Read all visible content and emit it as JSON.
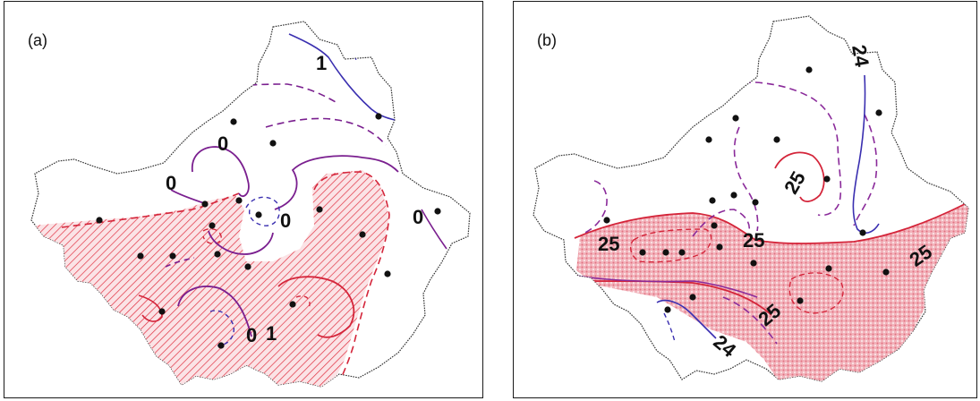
{
  "figure": {
    "panels": [
      {
        "id": "a",
        "label": "(a)",
        "contour_labels": [
          "0",
          "0",
          "0",
          "0",
          "0",
          "1",
          "1"
        ],
        "colors": {
          "positive_contour": "#d4253a",
          "zero_contour": "#7a1f8f",
          "negative_contour": "#3a2fb0",
          "hatch": "#e03040"
        },
        "shading": "hatched (positive anomaly region)"
      },
      {
        "id": "b",
        "label": "(b)",
        "contour_labels": [
          "24",
          "25",
          "25",
          "25",
          "25",
          "25",
          "24"
        ],
        "colors": {
          "high_contour": "#d4253a",
          "mid_contour": "#8a2a9a",
          "low_contour": "#3a2fb0",
          "fill": "#e97a88"
        },
        "shading": "stippled (values above 25)"
      }
    ],
    "station_marker": "black-dot"
  }
}
